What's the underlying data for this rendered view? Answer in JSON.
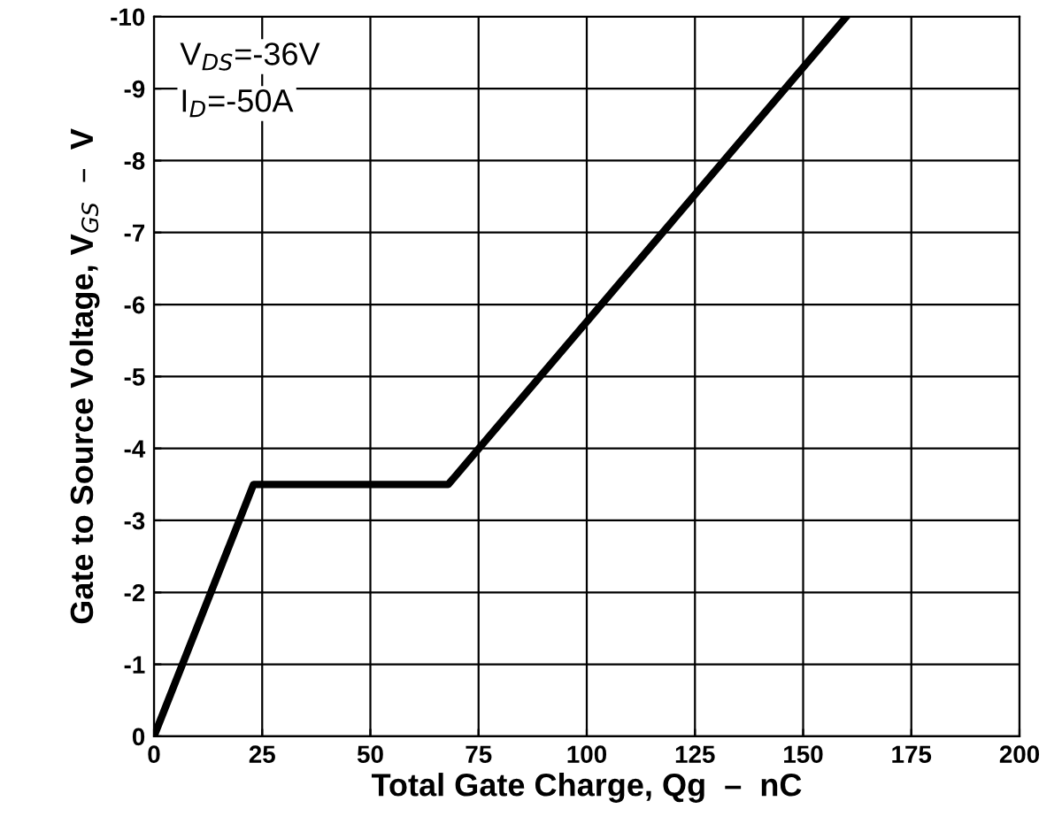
{
  "chart_data": {
    "type": "line",
    "xlabel": "Total Gate Charge, Qg  –  nC",
    "ylabel": "Gate to Source Voltage, V$_{GS}$  –  V",
    "annotations": [
      "V$_{DS}$=-36V",
      "I$_{D}$=-50A"
    ],
    "series": [
      {
        "color": "#000000",
        "x": [
          0,
          23,
          68,
          160
        ],
        "values": [
          0,
          -3.5,
          -3.5,
          -10
        ]
      }
    ],
    "xlim": [
      0,
      200
    ],
    "xticks": [
      0,
      25,
      50,
      75,
      100,
      125,
      150,
      175,
      200
    ],
    "ylim": [
      0,
      -10
    ],
    "yticks": [
      0,
      -1,
      -2,
      -3,
      -4,
      -5,
      -6,
      -7,
      -8,
      -9,
      -10
    ],
    "grid": true,
    "legend": false,
    "marker": "none",
    "line_style": "solid"
  }
}
